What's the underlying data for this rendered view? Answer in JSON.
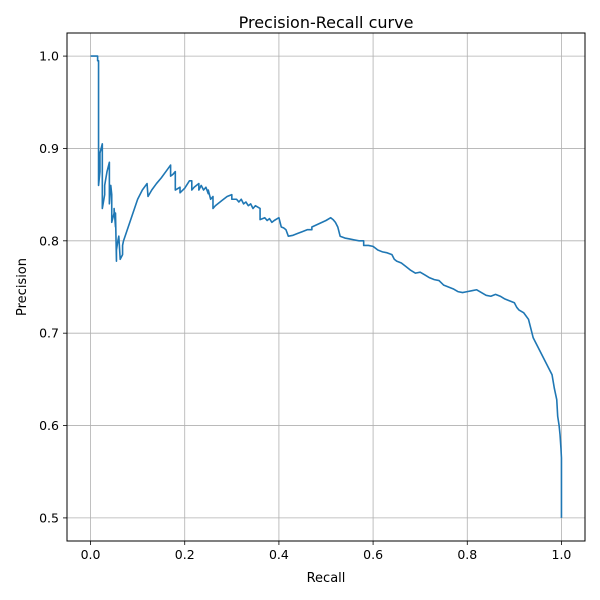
{
  "chart_data": {
    "type": "line",
    "title": "Precision-Recall curve",
    "xlabel": "Recall",
    "ylabel": "Precision",
    "xlim": [
      -0.05,
      1.05
    ],
    "ylim": [
      0.475,
      1.025
    ],
    "xticks": [
      0.0,
      0.2,
      0.4,
      0.6,
      0.8,
      1.0
    ],
    "xtick_labels": [
      "0.0",
      "0.2",
      "0.4",
      "0.6",
      "0.8",
      "1.0"
    ],
    "yticks": [
      0.5,
      0.6,
      0.7,
      0.8,
      0.9,
      1.0
    ],
    "ytick_labels": [
      "0.5",
      "0.6",
      "0.7",
      "0.8",
      "0.9",
      "1.0"
    ],
    "grid": true,
    "line_color": "#1f77b4",
    "series": [
      {
        "x": [
          0.0,
          0.015,
          0.015,
          0.017,
          0.017,
          0.02,
          0.02,
          0.025,
          0.025,
          0.03,
          0.03,
          0.035,
          0.04,
          0.04,
          0.043,
          0.045,
          0.045,
          0.05,
          0.05,
          0.053,
          0.053,
          0.055,
          0.055,
          0.058,
          0.06,
          0.063,
          0.068,
          0.068,
          0.07,
          0.08,
          0.09,
          0.1,
          0.11,
          0.12,
          0.122,
          0.13,
          0.14,
          0.15,
          0.16,
          0.17,
          0.17,
          0.175,
          0.18,
          0.18,
          0.19,
          0.19,
          0.2,
          0.21,
          0.215,
          0.215,
          0.22,
          0.23,
          0.23,
          0.235,
          0.24,
          0.245,
          0.25,
          0.25,
          0.255,
          0.26,
          0.26,
          0.265,
          0.27,
          0.28,
          0.29,
          0.3,
          0.3,
          0.31,
          0.315,
          0.32,
          0.325,
          0.33,
          0.335,
          0.34,
          0.345,
          0.35,
          0.36,
          0.36,
          0.37,
          0.375,
          0.38,
          0.385,
          0.39,
          0.4,
          0.405,
          0.41,
          0.415,
          0.42,
          0.43,
          0.44,
          0.45,
          0.46,
          0.47,
          0.47,
          0.5,
          0.51,
          0.515,
          0.52,
          0.525,
          0.53,
          0.535,
          0.54,
          0.55,
          0.56,
          0.57,
          0.58,
          0.58,
          0.59,
          0.6,
          0.61,
          0.62,
          0.63,
          0.64,
          0.645,
          0.65,
          0.66,
          0.67,
          0.68,
          0.69,
          0.7,
          0.71,
          0.72,
          0.73,
          0.74,
          0.75,
          0.76,
          0.77,
          0.78,
          0.79,
          0.8,
          0.81,
          0.82,
          0.83,
          0.84,
          0.85,
          0.86,
          0.87,
          0.88,
          0.89,
          0.9,
          0.905,
          0.91,
          0.92,
          0.93,
          0.935,
          0.94,
          0.945,
          0.95,
          0.955,
          0.96,
          0.965,
          0.97,
          0.975,
          0.98,
          0.985,
          0.99,
          0.992,
          0.995,
          0.997,
          0.999,
          1.0,
          1.0
        ],
        "y": [
          1.0,
          1.0,
          0.995,
          0.995,
          0.86,
          0.875,
          0.895,
          0.905,
          0.835,
          0.85,
          0.86,
          0.875,
          0.885,
          0.84,
          0.86,
          0.85,
          0.82,
          0.83,
          0.835,
          0.815,
          0.83,
          0.778,
          0.79,
          0.8,
          0.805,
          0.78,
          0.785,
          0.795,
          0.8,
          0.815,
          0.83,
          0.845,
          0.855,
          0.862,
          0.848,
          0.855,
          0.862,
          0.868,
          0.875,
          0.882,
          0.87,
          0.872,
          0.875,
          0.855,
          0.858,
          0.852,
          0.857,
          0.865,
          0.865,
          0.855,
          0.858,
          0.862,
          0.855,
          0.86,
          0.855,
          0.858,
          0.851,
          0.855,
          0.845,
          0.848,
          0.835,
          0.838,
          0.84,
          0.844,
          0.848,
          0.85,
          0.845,
          0.845,
          0.842,
          0.845,
          0.84,
          0.842,
          0.838,
          0.84,
          0.835,
          0.838,
          0.835,
          0.823,
          0.825,
          0.822,
          0.824,
          0.82,
          0.822,
          0.825,
          0.815,
          0.814,
          0.812,
          0.805,
          0.806,
          0.808,
          0.81,
          0.812,
          0.812,
          0.815,
          0.822,
          0.825,
          0.823,
          0.82,
          0.815,
          0.805,
          0.804,
          0.803,
          0.802,
          0.801,
          0.8,
          0.8,
          0.795,
          0.795,
          0.794,
          0.79,
          0.788,
          0.787,
          0.785,
          0.78,
          0.778,
          0.776,
          0.772,
          0.768,
          0.765,
          0.766,
          0.763,
          0.76,
          0.758,
          0.757,
          0.752,
          0.75,
          0.748,
          0.745,
          0.744,
          0.745,
          0.746,
          0.747,
          0.744,
          0.741,
          0.74,
          0.742,
          0.74,
          0.737,
          0.735,
          0.733,
          0.728,
          0.725,
          0.722,
          0.715,
          0.705,
          0.695,
          0.69,
          0.685,
          0.68,
          0.675,
          0.67,
          0.665,
          0.66,
          0.655,
          0.64,
          0.628,
          0.61,
          0.6,
          0.59,
          0.575,
          0.565,
          0.5
        ]
      }
    ]
  }
}
